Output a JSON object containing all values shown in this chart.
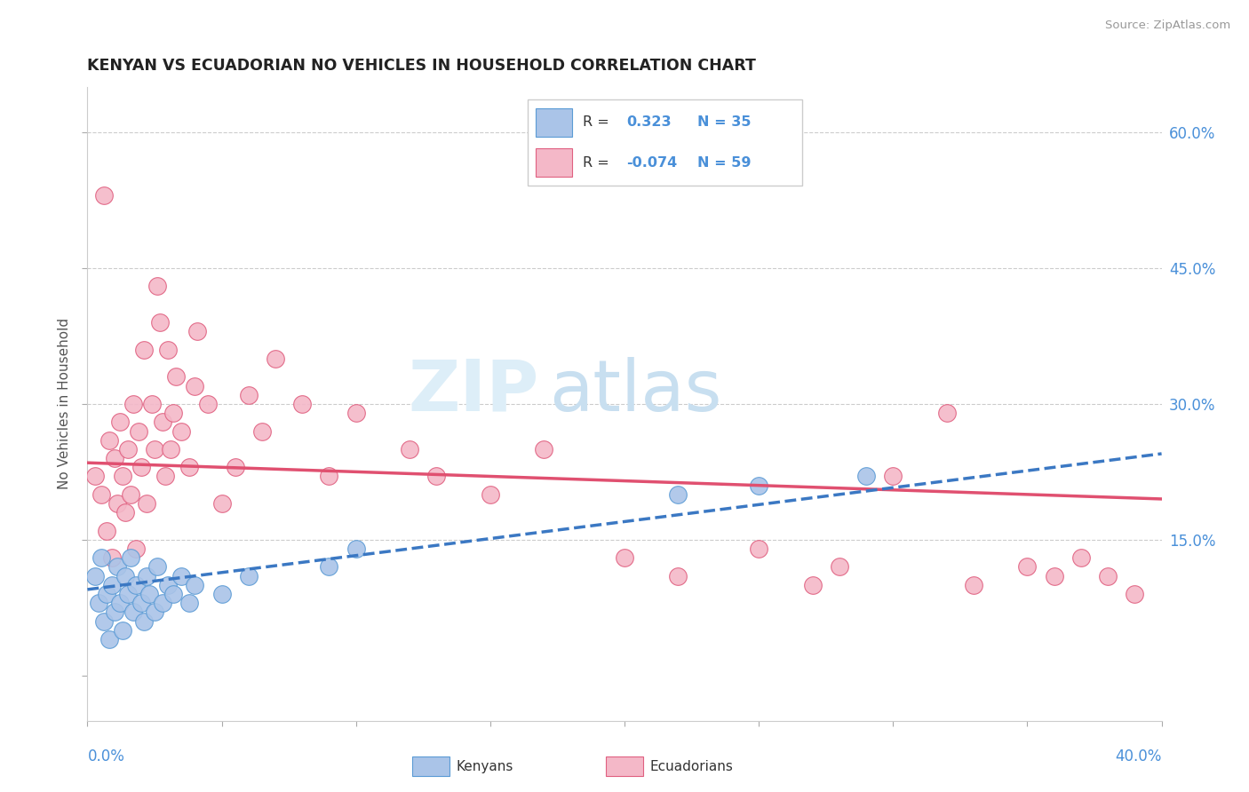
{
  "title": "KENYAN VS ECUADORIAN NO VEHICLES IN HOUSEHOLD CORRELATION CHART",
  "source": "Source: ZipAtlas.com",
  "ylabel": "No Vehicles in Household",
  "xmin": 0.0,
  "xmax": 0.4,
  "ymin": -0.05,
  "ymax": 0.65,
  "kenyan_color": "#aac4e8",
  "kenyan_edge_color": "#5b9bd5",
  "ecuadorian_color": "#f4b8c8",
  "ecuadorian_edge_color": "#e06080",
  "kenyan_line_color": "#3b78c3",
  "ecuadorian_line_color": "#e05070",
  "r_kenyan": "0.323",
  "n_kenyan": "35",
  "r_ecuadorian": "-0.074",
  "n_ecuadorian": "59",
  "watermark_zip": "ZIP",
  "watermark_atlas": "atlas",
  "grid_color": "#cccccc",
  "ytick_color": "#4a90d9",
  "xtick_color": "#4a90d9",
  "kenyan_x": [
    0.003,
    0.004,
    0.005,
    0.006,
    0.007,
    0.008,
    0.009,
    0.01,
    0.011,
    0.012,
    0.013,
    0.014,
    0.015,
    0.016,
    0.017,
    0.018,
    0.02,
    0.021,
    0.022,
    0.023,
    0.025,
    0.026,
    0.028,
    0.03,
    0.032,
    0.035,
    0.038,
    0.04,
    0.05,
    0.06,
    0.09,
    0.1,
    0.22,
    0.25,
    0.29
  ],
  "kenyan_y": [
    0.11,
    0.08,
    0.13,
    0.06,
    0.09,
    0.04,
    0.1,
    0.07,
    0.12,
    0.08,
    0.05,
    0.11,
    0.09,
    0.13,
    0.07,
    0.1,
    0.08,
    0.06,
    0.11,
    0.09,
    0.07,
    0.12,
    0.08,
    0.1,
    0.09,
    0.11,
    0.08,
    0.1,
    0.09,
    0.11,
    0.12,
    0.14,
    0.2,
    0.21,
    0.22
  ],
  "ecuadorian_x": [
    0.003,
    0.005,
    0.006,
    0.007,
    0.008,
    0.009,
    0.01,
    0.011,
    0.012,
    0.013,
    0.014,
    0.015,
    0.016,
    0.017,
    0.018,
    0.019,
    0.02,
    0.021,
    0.022,
    0.024,
    0.025,
    0.026,
    0.027,
    0.028,
    0.029,
    0.03,
    0.031,
    0.032,
    0.033,
    0.035,
    0.038,
    0.04,
    0.041,
    0.045,
    0.05,
    0.055,
    0.06,
    0.065,
    0.07,
    0.08,
    0.09,
    0.1,
    0.12,
    0.13,
    0.15,
    0.17,
    0.2,
    0.22,
    0.25,
    0.27,
    0.28,
    0.3,
    0.32,
    0.33,
    0.35,
    0.36,
    0.37,
    0.38,
    0.39
  ],
  "ecuadorian_y": [
    0.22,
    0.2,
    0.53,
    0.16,
    0.26,
    0.13,
    0.24,
    0.19,
    0.28,
    0.22,
    0.18,
    0.25,
    0.2,
    0.3,
    0.14,
    0.27,
    0.23,
    0.36,
    0.19,
    0.3,
    0.25,
    0.43,
    0.39,
    0.28,
    0.22,
    0.36,
    0.25,
    0.29,
    0.33,
    0.27,
    0.23,
    0.32,
    0.38,
    0.3,
    0.19,
    0.23,
    0.31,
    0.27,
    0.35,
    0.3,
    0.22,
    0.29,
    0.25,
    0.22,
    0.2,
    0.25,
    0.13,
    0.11,
    0.14,
    0.1,
    0.12,
    0.22,
    0.29,
    0.1,
    0.12,
    0.11,
    0.13,
    0.11,
    0.09
  ]
}
